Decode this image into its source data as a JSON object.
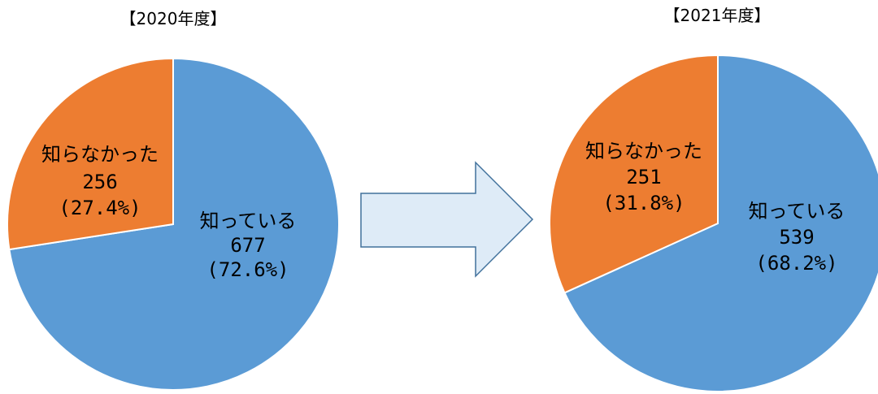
{
  "colors": {
    "known": "#5B9BD5",
    "unknown": "#ED7D31",
    "arrow_fill": "#DEEBF7",
    "arrow_stroke": "#41719C"
  },
  "arrow_icon": "right-arrow-icon",
  "chart_data": [
    {
      "type": "pie",
      "title": "【2020年度】",
      "slices": [
        {
          "label": "知っている",
          "value": 677,
          "percent": "(72.6%)"
        },
        {
          "label": "知らなかった",
          "value": 256,
          "percent": "(27.4%)"
        }
      ]
    },
    {
      "type": "pie",
      "title": "【2021年度】",
      "slices": [
        {
          "label": "知っている",
          "value": 539,
          "percent": "(68.2%)"
        },
        {
          "label": "知らなかった",
          "value": 251,
          "percent": "(31.8%)"
        }
      ]
    }
  ]
}
